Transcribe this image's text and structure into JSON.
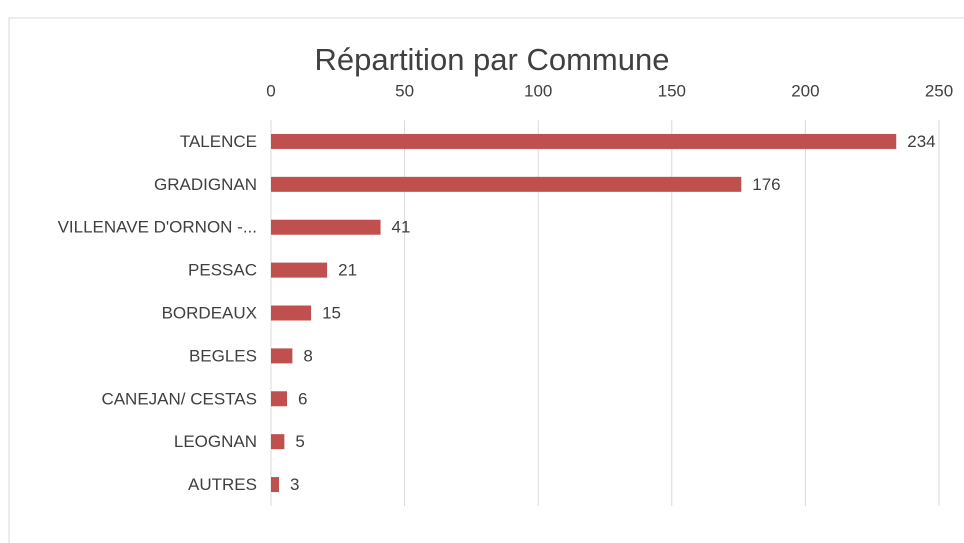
{
  "chart_data": {
    "type": "bar",
    "orientation": "horizontal",
    "title": "Répartition par Commune",
    "categories": [
      "TALENCE",
      "GRADIGNAN",
      "VILLENAVE D'ORNON -...",
      "PESSAC",
      "BORDEAUX",
      "BEGLES",
      "CANEJAN/ CESTAS",
      "LEOGNAN",
      "AUTRES"
    ],
    "values": [
      234,
      176,
      41,
      21,
      15,
      8,
      6,
      5,
      3
    ],
    "color": "#c0504d",
    "xlim": [
      0,
      250
    ],
    "xticks": [
      0,
      50,
      100,
      150,
      200,
      250
    ],
    "grid": true
  }
}
